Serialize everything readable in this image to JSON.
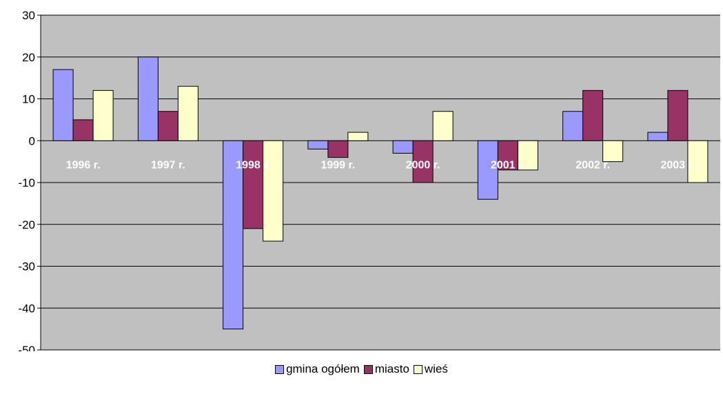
{
  "chart_data": {
    "type": "bar",
    "categories": [
      "1996 r.",
      "1997 r.",
      "1998 r.",
      "1999 r.",
      "2000 r.",
      "2001 r.",
      "2002 r.",
      "2003 r."
    ],
    "series": [
      {
        "name": "gmina ogółem",
        "color": "#9999ff",
        "values": [
          17,
          20,
          -45,
          -2,
          -3,
          -14,
          7,
          2
        ]
      },
      {
        "name": "miasto",
        "color": "#993366",
        "values": [
          5,
          7,
          -21,
          -4,
          -10,
          -7,
          12,
          12
        ]
      },
      {
        "name": "wieś",
        "color": "#ffffcc",
        "values": [
          12,
          13,
          -24,
          2,
          7,
          -7,
          -5,
          -10
        ]
      }
    ],
    "yticks": [
      "30",
      "20",
      "10",
      "0",
      "-10",
      "-20",
      "-30",
      "-40",
      "-50"
    ],
    "ylim": [
      -50,
      30
    ],
    "grid": true,
    "legend_position": "bottom",
    "plot_background": "#c0c0c0"
  }
}
